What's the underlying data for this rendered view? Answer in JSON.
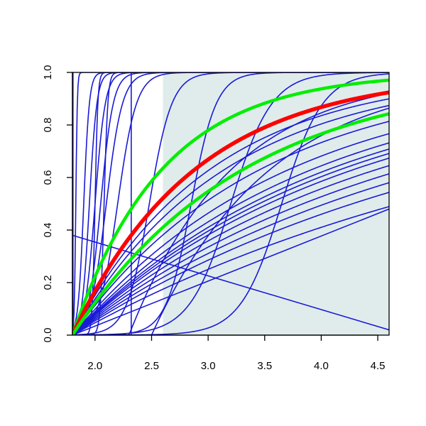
{
  "chart_data": {
    "type": "line",
    "title": "",
    "xlabel": "",
    "ylabel": "",
    "xlim": [
      1.8,
      4.6
    ],
    "ylim": [
      0.0,
      1.0
    ],
    "x_ticks": [
      2.0,
      2.5,
      3.0,
      3.5,
      4.0,
      4.5
    ],
    "x_tick_labels": [
      "2.0",
      "2.5",
      "3.0",
      "3.5",
      "4.0",
      "4.5"
    ],
    "y_ticks": [
      0.0,
      0.2,
      0.4,
      0.6,
      0.8,
      1.0
    ],
    "y_tick_labels": [
      "0.0",
      "0.2",
      "0.4",
      "0.6",
      "0.8",
      "1.0"
    ],
    "grid": false,
    "legend": "none",
    "shaded_region": {
      "x": [
        2.6,
        4.6
      ],
      "y": [
        0.0,
        1.0
      ],
      "color": "#e0ecec"
    },
    "colors": {
      "blue": "#1a1ad6",
      "red": "#ff0000",
      "green": "#00ee00"
    },
    "series": [
      {
        "color": "blue",
        "kind": "vertical",
        "x": 1.805
      },
      {
        "color": "blue",
        "kind": "logistic",
        "x0": 1.83,
        "k": 150
      },
      {
        "color": "blue",
        "kind": "logistic",
        "x0": 1.9,
        "k": 40
      },
      {
        "color": "blue",
        "kind": "logistic",
        "x0": 1.95,
        "k": 30
      },
      {
        "color": "blue",
        "kind": "logistic",
        "x0": 2.0,
        "k": 22
      },
      {
        "color": "blue",
        "kind": "logistic",
        "x0": 2.05,
        "k": 18
      },
      {
        "color": "blue",
        "kind": "logistic",
        "x0": 2.1,
        "k": 14
      },
      {
        "color": "blue",
        "kind": "logistic",
        "x0": 2.2,
        "k": 12
      },
      {
        "color": "blue",
        "kind": "logistic",
        "x0": 2.0,
        "k": 80
      },
      {
        "color": "blue",
        "kind": "logistic",
        "x0": 2.08,
        "k": 60
      },
      {
        "color": "blue",
        "kind": "step",
        "x": 2.32
      },
      {
        "color": "blue",
        "kind": "logistic",
        "x0": 2.48,
        "k": 10
      },
      {
        "color": "blue",
        "kind": "logistic",
        "x0": 2.85,
        "k": 9
      },
      {
        "color": "blue",
        "kind": "logistic",
        "x0": 3.2,
        "k": 5.5
      },
      {
        "color": "blue",
        "kind": "logistic",
        "x0": 3.65,
        "k": 5.5
      },
      {
        "color": "blue",
        "kind": "onset",
        "x0": 2.3,
        "lambda": 1.1
      },
      {
        "color": "blue",
        "kind": "onset",
        "x0": 2.5,
        "lambda": 0.95
      },
      {
        "color": "blue",
        "kind": "sat",
        "lambda": 0.82
      },
      {
        "color": "blue",
        "kind": "sat",
        "lambda": 0.74
      },
      {
        "color": "blue",
        "kind": "sat",
        "lambda": 0.66
      },
      {
        "color": "blue",
        "kind": "sat",
        "lambda": 0.6
      },
      {
        "color": "blue",
        "kind": "sat",
        "lambda": 0.52
      },
      {
        "color": "blue",
        "kind": "sat",
        "lambda": 0.47
      },
      {
        "color": "blue",
        "kind": "sat",
        "lambda": 0.44
      },
      {
        "color": "blue",
        "kind": "sat",
        "lambda": 0.42
      },
      {
        "color": "blue",
        "kind": "sat",
        "lambda": 0.4
      },
      {
        "color": "blue",
        "kind": "sat",
        "lambda": 0.37
      },
      {
        "color": "blue",
        "kind": "sat",
        "lambda": 0.34
      },
      {
        "color": "blue",
        "kind": "sat",
        "lambda": 0.31
      },
      {
        "color": "blue",
        "kind": "sat",
        "lambda": 0.28
      },
      {
        "color": "blue",
        "kind": "sat",
        "lambda": 0.24
      },
      {
        "color": "blue",
        "kind": "linear",
        "x_start": 1.8,
        "y_start": 0.0,
        "x_end": 4.6,
        "y_end": 0.48
      },
      {
        "color": "blue",
        "kind": "linear",
        "x_start": 1.8,
        "y_start": 0.38,
        "x_end": 4.6,
        "y_end": 0.02
      },
      {
        "color": "green",
        "kind": "sat",
        "lambda": 1.26,
        "width": 4.5
      },
      {
        "color": "red",
        "kind": "sat",
        "lambda": 0.92,
        "width": 5.5
      },
      {
        "color": "green",
        "kind": "sat",
        "lambda": 0.66,
        "width": 4.5
      }
    ]
  }
}
